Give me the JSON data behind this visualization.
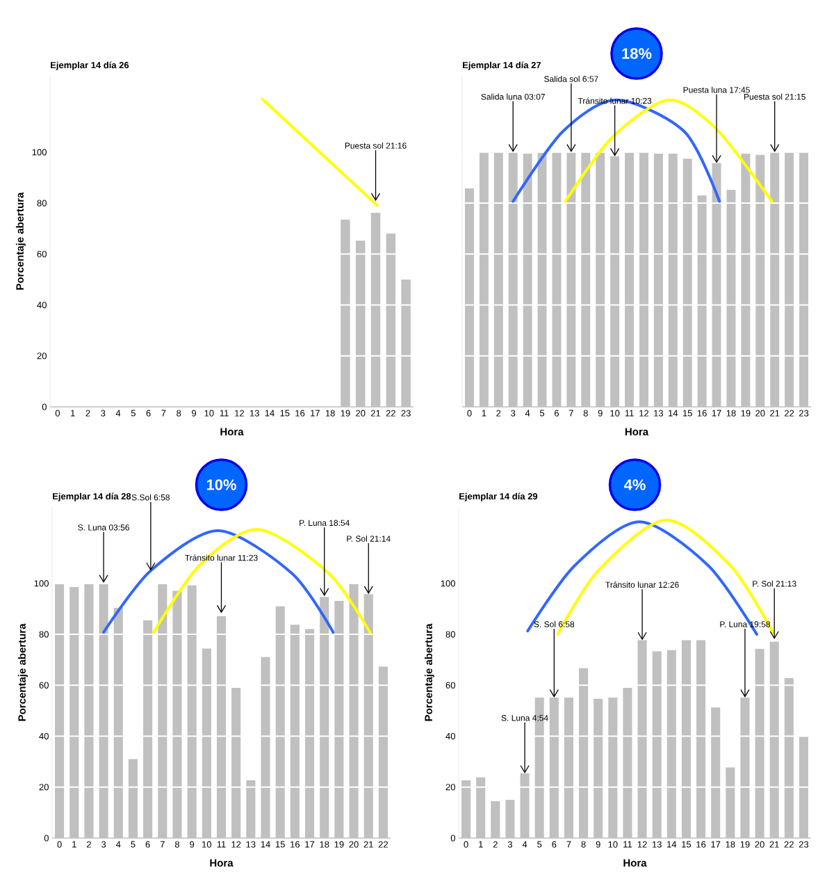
{
  "chart_data": [
    {
      "type": "bar",
      "title": "Ejemplar 14 día 26",
      "xlabel": "Hora",
      "ylabel": "Porcentaje abertura",
      "x": [
        0,
        1,
        2,
        3,
        4,
        5,
        6,
        7,
        8,
        9,
        10,
        11,
        12,
        13,
        14,
        15,
        16,
        17,
        18,
        19,
        20,
        21,
        22,
        23
      ],
      "xlim": [
        -0.5,
        23.5
      ],
      "xticks": [
        0,
        1,
        2,
        3,
        4,
        5,
        6,
        7,
        8,
        9,
        10,
        11,
        12,
        13,
        14,
        15,
        16,
        17,
        18,
        19,
        20,
        21,
        22,
        23
      ],
      "ylim": [
        0,
        130
      ],
      "yticks": [
        0,
        20,
        40,
        60,
        80,
        100
      ],
      "grid": "y",
      "series": [
        {
          "color": "#c0c0c0",
          "values": [
            0,
            0,
            0,
            0,
            0,
            0,
            0,
            0,
            0,
            0,
            0,
            0,
            0,
            0,
            0,
            0,
            0,
            0,
            0,
            73.5,
            65.3,
            76.2,
            68.1,
            50
          ]
        },
        {
          "type": "line",
          "color": "#ffff00",
          "x": [
            13.5,
            21.1
          ],
          "values": [
            120.9,
            79.1
          ]
        }
      ],
      "annotations": [
        {
          "text": "Puesta sol 21:16",
          "x": 21,
          "y": 80.8
        }
      ]
    },
    {
      "type": "bar",
      "title": "Ejemplar 14 día 27",
      "xlabel": "Hora",
      "x": [
        0,
        1,
        2,
        3,
        4,
        5,
        6,
        7,
        8,
        9,
        10,
        11,
        12,
        13,
        14,
        15,
        16,
        17,
        18,
        19,
        20,
        21,
        22,
        23
      ],
      "xlim": [
        -0.5,
        23.5
      ],
      "xticks": [
        0,
        1,
        2,
        3,
        4,
        5,
        6,
        7,
        8,
        9,
        10,
        11,
        12,
        13,
        14,
        15,
        16,
        17,
        18,
        19,
        20,
        21,
        22,
        23
      ],
      "ylim": [
        0,
        130
      ],
      "yticks": [
        0,
        20,
        40,
        60,
        80,
        100
      ],
      "grid": "y",
      "tick_labels": "x",
      "series": [
        {
          "color": "#c0c0c0",
          "values": [
            85.8,
            100,
            100,
            100,
            99.4,
            100,
            100,
            100,
            100,
            100,
            98.4,
            100,
            100,
            99.4,
            99.4,
            97.4,
            83,
            95.7,
            85.2,
            99.4,
            98.9,
            100,
            100,
            100
          ]
        },
        {
          "type": "line",
          "color": "#3366ff",
          "x": [
            3,
            6.4,
            10.1,
            14.8,
            17.2
          ],
          "values": [
            80.7,
            108,
            120.5,
            108,
            80.7
          ]
        },
        {
          "type": "line",
          "color": "#ffff00",
          "x": [
            6.6,
            9.8,
            13.7,
            17.0,
            20.8
          ],
          "values": [
            80.7,
            105.7,
            120.5,
            109,
            80.7
          ]
        }
      ],
      "annotations": [
        "18%",
        {
          "text": "Salida luna 03:07",
          "x": 3,
          "y": 100
        },
        {
          "text": "Salida sol 6:57",
          "x": 7,
          "y": 100
        },
        {
          "text": "Tránsito lunar 10:23",
          "x": 10,
          "y": 98.4
        },
        {
          "text": "Puesta luna 17:45",
          "x": 17,
          "y": 95.7
        },
        {
          "text": "Puesta sol 21:15",
          "x": 21,
          "y": 100
        }
      ]
    },
    {
      "type": "bar",
      "title": "Ejemplar 14 día 28",
      "xlabel": "Hora",
      "ylabel": "Porcentaje abertura",
      "x": [
        0,
        1,
        2,
        3,
        4,
        5,
        6,
        7,
        8,
        9,
        10,
        11,
        12,
        13,
        14,
        15,
        16,
        17,
        18,
        19,
        20,
        21,
        22
      ],
      "xlim": [
        -0.5,
        22.5
      ],
      "xticks": [
        0,
        1,
        2,
        3,
        4,
        5,
        6,
        7,
        8,
        9,
        10,
        11,
        12,
        13,
        14,
        15,
        16,
        17,
        18,
        19,
        20,
        21,
        22
      ],
      "ylim": [
        0,
        130
      ],
      "yticks": [
        0,
        20,
        40,
        60,
        80,
        100
      ],
      "grid": "y",
      "series": [
        {
          "color": "#c0c0c0",
          "values": [
            99.7,
            98.6,
            99.7,
            99.7,
            90.4,
            31,
            85.5,
            99.7,
            97.1,
            99.2,
            74.4,
            87.1,
            59,
            22.7,
            71.1,
            91,
            83.8,
            82.1,
            94.7,
            93.1,
            99.7,
            95.8,
            67.3
          ]
        },
        {
          "type": "line",
          "color": "#3366ff",
          "x": [
            3,
            6.2,
            10.8,
            15.8,
            18.6
          ],
          "values": [
            80.8,
            105,
            120.7,
            103.9,
            80.8
          ]
        },
        {
          "type": "line",
          "color": "#ffff00",
          "x": [
            6.4,
            9.5,
            13.5,
            18.3,
            21.1
          ],
          "values": [
            80.8,
            107,
            121.2,
            103.9,
            80.8
          ]
        }
      ],
      "annotations": [
        "10%",
        {
          "text": "S. Luna 03:56",
          "x": 3,
          "y": 100.2
        },
        {
          "text": "S.Sol 6:58",
          "x": 6.2,
          "y": 105
        },
        {
          "text": "Tránsito lunar 11:23",
          "x": 11,
          "y": 88.3
        },
        {
          "text": "P. Luna 18:54",
          "x": 18,
          "y": 95
        },
        {
          "text": "P. Sol 21:14",
          "x": 21,
          "y": 95.8
        }
      ]
    },
    {
      "type": "bar",
      "title": "Ejemplar 14 día 29",
      "xlabel": "Hora",
      "ylabel": "Porcentaje abertura",
      "x": [
        0,
        1,
        2,
        3,
        4,
        5,
        6,
        7,
        8,
        9,
        10,
        11,
        12,
        13,
        14,
        15,
        16,
        17,
        18,
        19,
        20,
        21,
        22,
        23
      ],
      "xlim": [
        -0.5,
        23.5
      ],
      "xticks": [
        0,
        1,
        2,
        3,
        4,
        5,
        6,
        7,
        8,
        9,
        10,
        11,
        12,
        13,
        14,
        15,
        16,
        17,
        18,
        19,
        20,
        21,
        22,
        23
      ],
      "ylim": [
        0,
        130
      ],
      "yticks": [
        0,
        20,
        40,
        60,
        80,
        100
      ],
      "grid": "y",
      "series": [
        {
          "color": "#c0c0c0",
          "values": [
            22.7,
            23.8,
            14.5,
            15,
            25.4,
            55.2,
            55.2,
            55.2,
            66.7,
            54.7,
            55.2,
            59,
            77.7,
            73.3,
            73.8,
            77.7,
            77.7,
            51.3,
            27.7,
            55.2,
            74.3,
            77.1,
            62.8,
            40
          ]
        },
        {
          "type": "line",
          "color": "#3366ff",
          "x": [
            4.2,
            7.4,
            11.8,
            16.5,
            19.8
          ],
          "values": [
            81.3,
            107,
            124.2,
            107,
            80
          ]
        },
        {
          "type": "line",
          "color": "#ffff00",
          "x": [
            6.25,
            9.0,
            13.6,
            18.0,
            20.9
          ],
          "values": [
            80,
            105,
            124.9,
            107,
            80.8
          ]
        }
      ],
      "annotations": [
        "4%",
        {
          "text": "S. Luna 4:54",
          "x": 4,
          "y": 25.4
        },
        {
          "text": "S. Sol 6:58",
          "x": 6,
          "y": 55.2
        },
        {
          "text": "Tránsito lunar 12:26",
          "x": 12,
          "y": 77.7
        },
        {
          "text": "P. Luna 19:58",
          "x": 19,
          "y": 55.2
        },
        {
          "text": "P. Sol 21:13",
          "x": 21,
          "y": 78.1
        }
      ]
    }
  ]
}
